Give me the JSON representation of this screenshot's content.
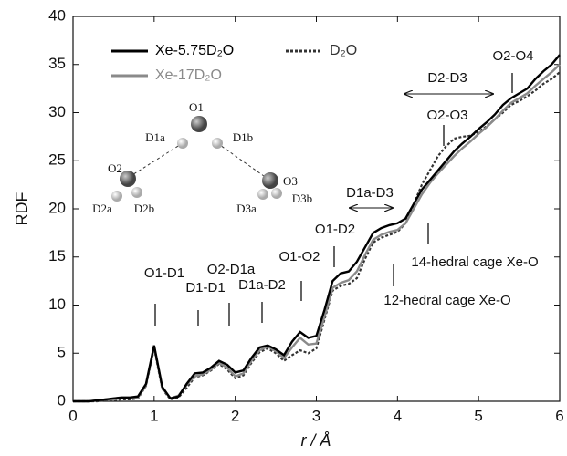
{
  "chart_data": {
    "type": "line",
    "xlabel": "r / Å",
    "ylabel": "RDF",
    "x": [
      0,
      0.1,
      0.2,
      0.3,
      0.4,
      0.5,
      0.6,
      0.7,
      0.8,
      0.9,
      1.0,
      1.1,
      1.2,
      1.3,
      1.4,
      1.5,
      1.6,
      1.7,
      1.8,
      1.9,
      2.0,
      2.1,
      2.2,
      2.3,
      2.4,
      2.5,
      2.6,
      2.7,
      2.8,
      2.9,
      3.0,
      3.1,
      3.2,
      3.3,
      3.4,
      3.5,
      3.6,
      3.7,
      3.8,
      3.9,
      4.0,
      4.1,
      4.2,
      4.3,
      4.4,
      4.5,
      4.6,
      4.7,
      4.8,
      4.9,
      5.0,
      5.1,
      5.2,
      5.3,
      5.4,
      5.5,
      5.6,
      5.7,
      5.8,
      5.9,
      6.0
    ],
    "series": [
      {
        "name": "Xe-5.75D₂O",
        "color": "#000000",
        "dash": false,
        "values": [
          0,
          0,
          0,
          0.1,
          0.2,
          0.3,
          0.4,
          0.4,
          0.5,
          1.8,
          5.8,
          1.5,
          0.3,
          0.5,
          1.8,
          2.9,
          3.0,
          3.5,
          4.2,
          3.8,
          3.0,
          3.2,
          4.5,
          5.6,
          5.8,
          5.4,
          4.8,
          6.2,
          7.2,
          6.6,
          6.8,
          9.5,
          12.5,
          13.3,
          13.5,
          14.5,
          16.0,
          17.5,
          18.0,
          18.3,
          18.5,
          19.0,
          20.5,
          22.0,
          23.0,
          24.0,
          25.0,
          26.0,
          26.8,
          27.5,
          28.3,
          29.0,
          29.8,
          30.8,
          31.5,
          32.0,
          32.5,
          33.5,
          34.3,
          35.0,
          36.0
        ]
      },
      {
        "name": "Xe-17D₂O",
        "color": "#8a8a8a",
        "dash": false,
        "values": [
          0,
          0,
          0,
          0.1,
          0.2,
          0.2,
          0.3,
          0.3,
          0.4,
          1.7,
          5.7,
          1.4,
          0.3,
          0.6,
          1.7,
          2.6,
          2.8,
          3.3,
          4.0,
          3.5,
          2.6,
          2.9,
          4.2,
          5.3,
          5.7,
          5.2,
          4.5,
          5.6,
          6.6,
          5.9,
          6.0,
          8.8,
          11.8,
          12.3,
          12.6,
          13.5,
          15.2,
          16.8,
          17.3,
          17.6,
          17.8,
          18.5,
          20.0,
          21.5,
          22.7,
          23.7,
          24.6,
          25.5,
          26.3,
          27.0,
          27.8,
          28.5,
          29.3,
          30.2,
          31.0,
          31.5,
          32.0,
          32.8,
          33.5,
          34.2,
          35.0
        ]
      },
      {
        "name": "D₂O",
        "color": "#333333",
        "dash": true,
        "values": [
          0,
          0,
          0,
          0,
          0.1,
          0.1,
          0.2,
          0.2,
          0.3,
          1.6,
          5.5,
          1.3,
          0.2,
          0.4,
          1.4,
          2.5,
          2.7,
          3.2,
          3.9,
          3.3,
          2.4,
          2.7,
          4.0,
          5.1,
          5.5,
          5.0,
          4.2,
          4.8,
          5.3,
          5.0,
          5.5,
          8.5,
          11.5,
          12.0,
          12.2,
          12.8,
          14.8,
          16.5,
          17.0,
          17.3,
          17.6,
          18.5,
          20.5,
          22.5,
          24.0,
          25.5,
          26.5,
          27.3,
          27.5,
          27.6,
          28.0,
          28.6,
          29.3,
          30.0,
          30.8,
          31.2,
          31.7,
          32.3,
          33.0,
          33.5,
          34.2
        ]
      }
    ],
    "xlim": [
      0,
      6
    ],
    "xticks": [
      0,
      1,
      2,
      3,
      4,
      5,
      6
    ],
    "ylim": [
      0,
      40
    ],
    "yticks": [
      0,
      5,
      10,
      15,
      20,
      25,
      30,
      35,
      40
    ],
    "annotations": [
      "O1-D1",
      "D1-D1",
      "O2-D1a",
      "D1a-D2",
      "O1-O2",
      "O1-D2",
      "D1a-D3",
      "D2-D3",
      "O2-O3",
      "O2-O4",
      "14-hedral cage Xe-O",
      "12-hedral cage Xe-O"
    ],
    "molecule_labels": [
      "O1",
      "D1a",
      "D1b",
      "O2",
      "D2a",
      "D2b",
      "O3",
      "D3a",
      "D3b"
    ]
  }
}
